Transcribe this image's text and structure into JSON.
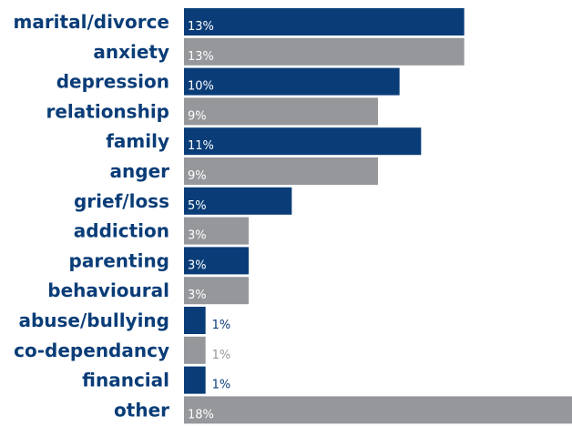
{
  "chart_data": {
    "type": "bar",
    "orientation": "horizontal",
    "categories": [
      "marital/divorce",
      "anxiety",
      "depression",
      "relationship",
      "family",
      "anger",
      "grief/loss",
      "addiction",
      "parenting",
      "behavioural",
      "abuse/bullying",
      "co-dependancy",
      "financial",
      "other"
    ],
    "values": [
      13,
      13,
      10,
      9,
      11,
      9,
      5,
      3,
      3,
      3,
      1,
      1,
      1,
      18
    ],
    "value_labels": [
      "13%",
      "13%",
      "10%",
      "9%",
      "11%",
      "9%",
      "5%",
      "3%",
      "3%",
      "3%",
      "1%",
      "1%",
      "1%",
      "18%"
    ],
    "colors": [
      "#0a3d78",
      "#95979b"
    ],
    "label_color": "#0a3d78",
    "title": "",
    "xlabel": "",
    "ylabel": "",
    "xlim": [
      0,
      18
    ],
    "grid": false,
    "legend": "none"
  }
}
